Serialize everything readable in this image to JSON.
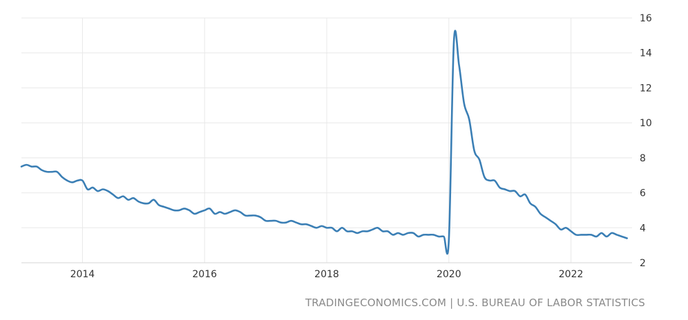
{
  "source": "TRADINGECONOMICS.COM | U.S. BUREAU OF LABOR STATISTICS",
  "colors": {
    "line": "#3b7fb5",
    "grid": "#e8e8e8",
    "axis": "#d6d6d6",
    "text": "#333333",
    "source": "#8a8a8a"
  },
  "chart_data": {
    "type": "line",
    "title": "",
    "xlabel": "",
    "ylabel": "",
    "x_ticks": [
      2014,
      2016,
      2018,
      2020,
      2022
    ],
    "y_ticks": [
      2,
      4,
      6,
      8,
      10,
      12,
      14,
      16
    ],
    "xlim": [
      2013.0,
      2023.0
    ],
    "ylim": [
      2,
      16
    ],
    "grid": true,
    "y_axis_position": "right",
    "series": [
      {
        "x": [
          2013.0,
          2013.083,
          2013.167,
          2013.25,
          2013.333,
          2013.417,
          2013.5,
          2013.583,
          2013.667,
          2013.75,
          2013.833,
          2013.917,
          2014.0,
          2014.083,
          2014.167,
          2014.25,
          2014.333,
          2014.417,
          2014.5,
          2014.583,
          2014.667,
          2014.75,
          2014.833,
          2014.917,
          2015.0,
          2015.083,
          2015.167,
          2015.25,
          2015.333,
          2015.417,
          2015.5,
          2015.583,
          2015.667,
          2015.75,
          2015.833,
          2015.917,
          2016.0,
          2016.083,
          2016.167,
          2016.25,
          2016.333,
          2016.417,
          2016.5,
          2016.583,
          2016.667,
          2016.75,
          2016.833,
          2016.917,
          2017.0,
          2017.083,
          2017.167,
          2017.25,
          2017.333,
          2017.417,
          2017.5,
          2017.583,
          2017.667,
          2017.75,
          2017.833,
          2017.917,
          2018.0,
          2018.083,
          2018.167,
          2018.25,
          2018.333,
          2018.417,
          2018.5,
          2018.583,
          2018.667,
          2018.75,
          2018.833,
          2018.917,
          2019.0,
          2019.083,
          2019.167,
          2019.25,
          2019.333,
          2019.417,
          2019.5,
          2019.583,
          2019.667,
          2019.75,
          2019.833,
          2019.917,
          2020.0,
          2020.083,
          2020.167,
          2020.25,
          2020.333,
          2020.417,
          2020.5,
          2020.583,
          2020.667,
          2020.75,
          2020.833,
          2020.917,
          2021.0,
          2021.083,
          2021.167,
          2021.25,
          2021.333,
          2021.417,
          2021.5,
          2021.583,
          2021.667,
          2021.75,
          2021.833,
          2021.917,
          2022.0,
          2022.083,
          2022.167,
          2022.25,
          2022.333,
          2022.417,
          2022.5,
          2022.583,
          2022.667,
          2022.75,
          2022.833,
          2022.917
        ],
        "values": [
          7.5,
          7.6,
          7.5,
          7.5,
          7.3,
          7.2,
          7.2,
          7.2,
          6.9,
          6.7,
          6.6,
          6.7,
          6.7,
          6.2,
          6.3,
          6.1,
          6.2,
          6.1,
          5.9,
          5.7,
          5.8,
          5.6,
          5.7,
          5.5,
          5.4,
          5.4,
          5.6,
          5.3,
          5.2,
          5.1,
          5.0,
          5.0,
          5.1,
          5.0,
          4.8,
          4.9,
          5.0,
          5.1,
          4.8,
          4.9,
          4.8,
          4.9,
          5.0,
          4.9,
          4.7,
          4.7,
          4.7,
          4.6,
          4.4,
          4.4,
          4.4,
          4.3,
          4.3,
          4.4,
          4.3,
          4.2,
          4.2,
          4.1,
          4.0,
          4.1,
          4.0,
          4.0,
          3.8,
          4.0,
          3.8,
          3.8,
          3.7,
          3.8,
          3.8,
          3.9,
          4.0,
          3.8,
          3.8,
          3.6,
          3.7,
          3.6,
          3.7,
          3.7,
          3.5,
          3.6,
          3.6,
          3.6,
          3.5,
          3.5,
          3.3,
          14.7,
          13.3,
          11.1,
          10.2,
          8.4,
          7.9,
          6.9,
          6.7,
          6.7,
          6.3,
          6.2,
          6.1,
          6.1,
          5.8,
          5.9,
          5.4,
          5.2,
          4.8,
          4.6,
          4.4,
          4.2,
          3.9,
          4.0,
          3.8,
          3.6,
          3.6,
          3.6,
          3.6,
          3.5,
          3.7,
          3.5,
          3.7,
          3.6,
          3.5,
          3.4
        ]
      }
    ]
  }
}
